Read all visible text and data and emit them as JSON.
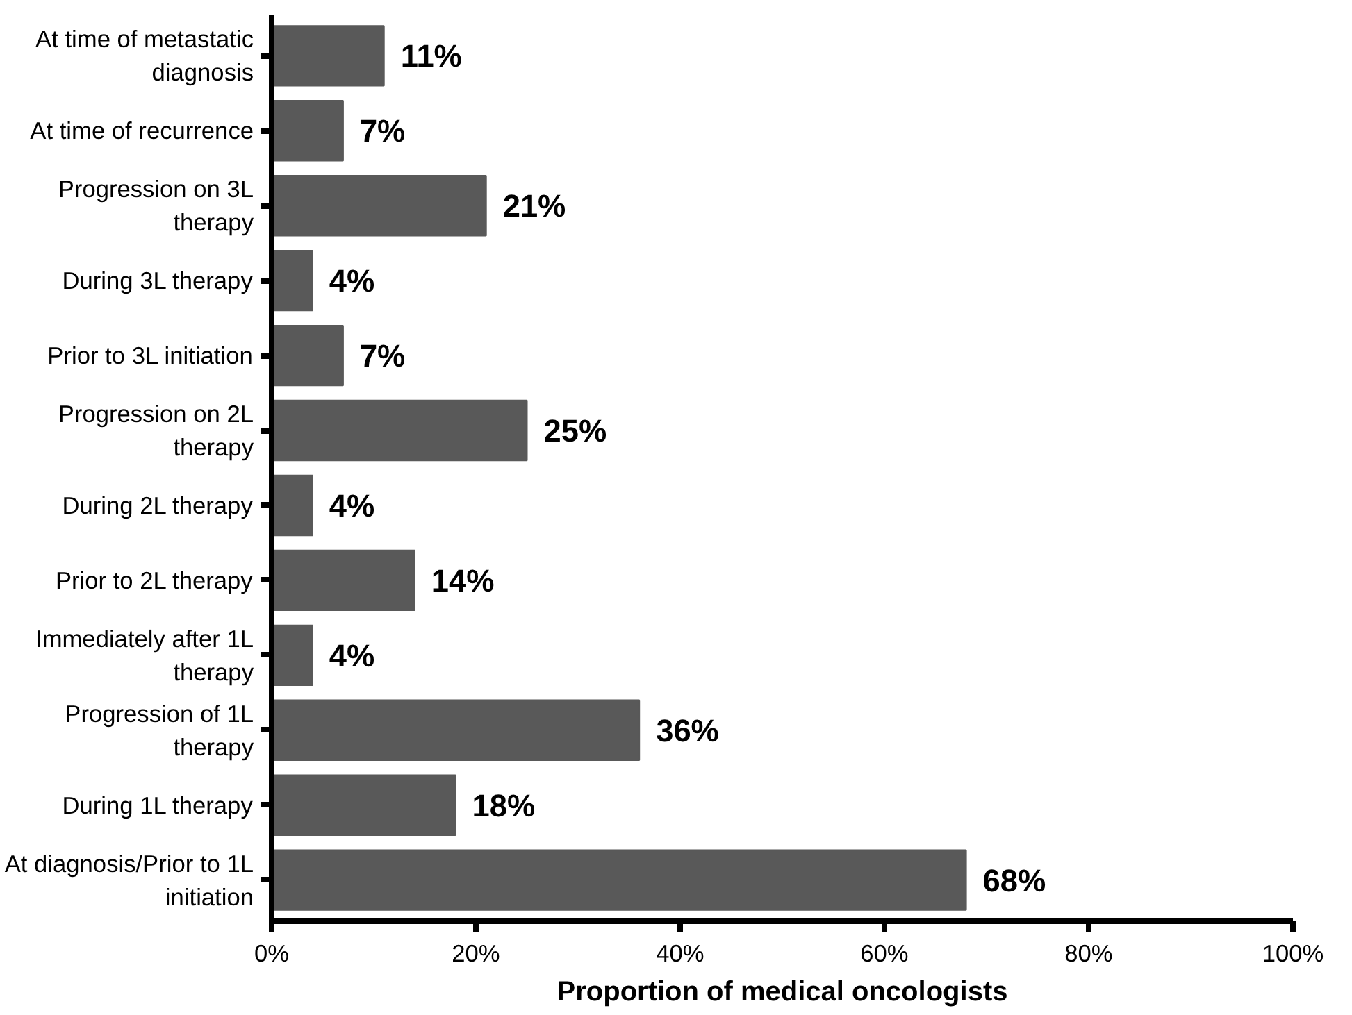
{
  "chart_data": {
    "type": "bar",
    "orientation": "horizontal",
    "categories": [
      "At time of metastatic diagnosis",
      "At time of recurrence",
      "Progression on 3L therapy",
      "During 3L therapy",
      "Prior to 3L initiation",
      "Progression on 2L therapy",
      "During 2L therapy",
      "Prior to 2L therapy",
      "Immediately after 1L therapy",
      "Progression of 1L therapy",
      "During 1L therapy",
      "At diagnosis/Prior to 1L initiation"
    ],
    "values": [
      11,
      7,
      21,
      4,
      7,
      25,
      4,
      14,
      4,
      36,
      18,
      68
    ],
    "value_labels": [
      "11%",
      "7%",
      "21%",
      "4%",
      "7%",
      "25%",
      "4%",
      "14%",
      "4%",
      "36%",
      "18%",
      "68%"
    ],
    "color": "#595959",
    "xlabel": "Proportion of medical oncologists",
    "xlim": [
      0,
      100
    ],
    "xticks": [
      {
        "value": 0,
        "label": "0%"
      },
      {
        "value": 20,
        "label": "20%"
      },
      {
        "value": 40,
        "label": "40%"
      },
      {
        "value": 60,
        "label": "60%"
      },
      {
        "value": 80,
        "label": "80%"
      },
      {
        "value": 100,
        "label": "100%"
      }
    ],
    "grid": false
  }
}
